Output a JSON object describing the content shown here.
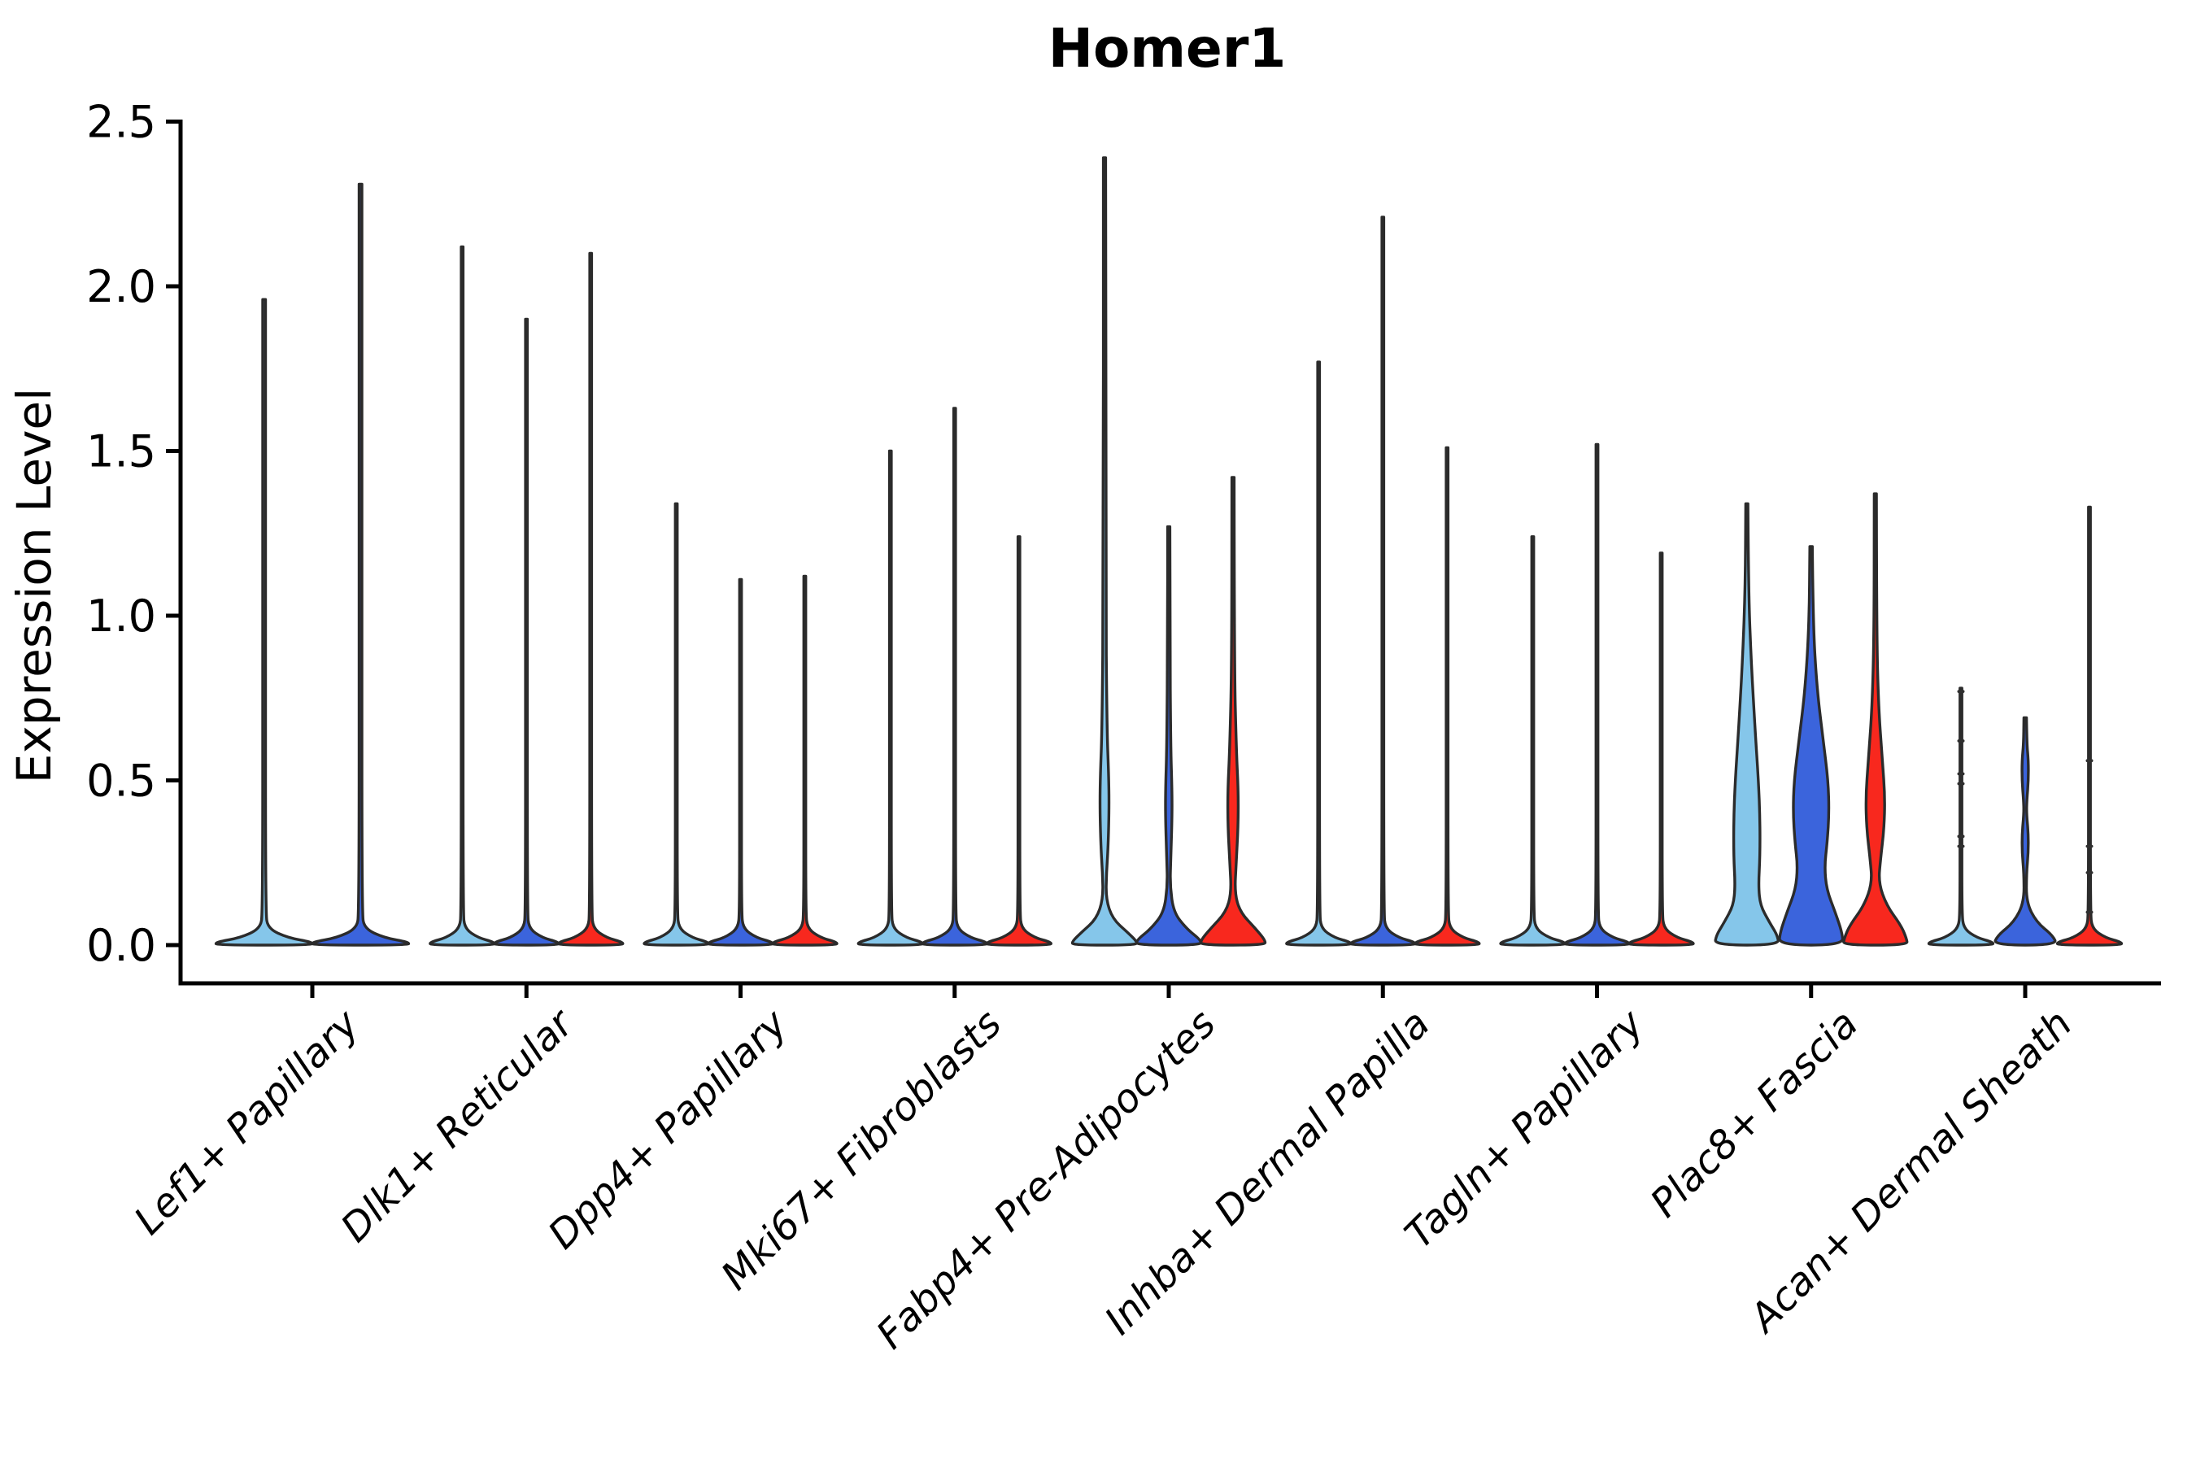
{
  "title": "Homer1",
  "y_axis": {
    "label": "Expression Level",
    "ticks": [
      "0.0",
      "0.5",
      "1.0",
      "1.5",
      "2.0",
      "2.5"
    ]
  },
  "colors": {
    "split_fills": [
      "#85C6EA",
      "#3B64DC",
      "#F8281E"
    ],
    "violin_outline": "#2B2B2B",
    "axis": "#000000",
    "point_marks": "#2F2F2F",
    "background": "#FFFFFF"
  },
  "chart_data": {
    "type": "violin",
    "title": "Homer1",
    "xlabel": "",
    "ylabel": "Expression Level",
    "ylim": [
      -0.12,
      2.52
    ],
    "yticks": [
      0.0,
      0.5,
      1.0,
      1.5,
      2.0,
      2.5
    ],
    "grid": false,
    "legend": "none",
    "categories": [
      "Lef1+ Papillary",
      "Dlk1+ Reticular",
      "Dpp4+ Papillary",
      "Mki67+ Fibroblasts",
      "Fabp4+ Pre-Adipocytes",
      "Inhba+ Dermal Papilla",
      "Tagln+ Papillary",
      "Plac8+ Fascia",
      "Acan+ Dermal Sheath"
    ],
    "groups": [
      {
        "category": "Lef1+ Papillary",
        "violins": [
          {
            "split": 1,
            "max": 1.96,
            "shape": "spike"
          },
          {
            "split": 2,
            "max": 2.31,
            "shape": "spike"
          }
        ]
      },
      {
        "category": "Dlk1+ Reticular",
        "violins": [
          {
            "split": 1,
            "max": 2.12,
            "shape": "spike"
          },
          {
            "split": 2,
            "max": 1.9,
            "shape": "spike"
          },
          {
            "split": 3,
            "max": 2.1,
            "shape": "spike"
          }
        ]
      },
      {
        "category": "Dpp4+ Papillary",
        "violins": [
          {
            "split": 1,
            "max": 1.34,
            "shape": "spike"
          },
          {
            "split": 2,
            "max": 1.11,
            "shape": "spike"
          },
          {
            "split": 3,
            "max": 1.12,
            "shape": "spike"
          }
        ]
      },
      {
        "category": "Mki67+ Fibroblasts",
        "violins": [
          {
            "split": 1,
            "max": 1.5,
            "shape": "spike"
          },
          {
            "split": 2,
            "max": 1.63,
            "shape": "spike"
          },
          {
            "split": 3,
            "max": 1.24,
            "shape": "spike"
          }
        ]
      },
      {
        "category": "Fabp4+ Pre-Adipocytes",
        "violins": [
          {
            "split": 1,
            "max": 2.39,
            "shape": "body",
            "profile": [
              [
                2.39,
                0.035
              ],
              [
                1.1,
                0.035
              ],
              [
                0.66,
                0.075
              ],
              [
                0.52,
                0.13
              ],
              [
                0.42,
                0.145
              ],
              [
                0.3,
                0.115
              ],
              [
                0.22,
                0.06
              ],
              [
                0.14,
                0.045
              ],
              [
                0.08,
                0.25
              ],
              [
                0.04,
                0.7
              ],
              [
                0.012,
                1.0
              ],
              [
                0,
                1.0
              ]
            ]
          },
          {
            "split": 2,
            "max": 1.27,
            "shape": "body",
            "profile": [
              [
                1.27,
                0.035
              ],
              [
                0.95,
                0.035
              ],
              [
                0.6,
                0.06
              ],
              [
                0.47,
                0.1
              ],
              [
                0.38,
                0.1
              ],
              [
                0.26,
                0.06
              ],
              [
                0.18,
                0.04
              ],
              [
                0.1,
                0.15
              ],
              [
                0.05,
                0.55
              ],
              [
                0.015,
                1.0
              ],
              [
                0,
                1.0
              ]
            ]
          },
          {
            "split": 3,
            "max": 1.42,
            "shape": "body",
            "profile": [
              [
                1.42,
                0.035
              ],
              [
                0.85,
                0.04
              ],
              [
                0.6,
                0.1
              ],
              [
                0.47,
                0.165
              ],
              [
                0.36,
                0.16
              ],
              [
                0.25,
                0.1
              ],
              [
                0.16,
                0.05
              ],
              [
                0.1,
                0.22
              ],
              [
                0.05,
                0.7
              ],
              [
                0.015,
                1.0
              ],
              [
                0,
                1.0
              ]
            ]
          }
        ]
      },
      {
        "category": "Inhba+ Dermal Papilla",
        "violins": [
          {
            "split": 1,
            "max": 1.77,
            "shape": "spike"
          },
          {
            "split": 2,
            "max": 2.21,
            "shape": "spike"
          },
          {
            "split": 3,
            "max": 1.51,
            "shape": "spike"
          }
        ]
      },
      {
        "category": "Tagln+ Papillary",
        "violins": [
          {
            "split": 1,
            "max": 1.24,
            "shape": "spike"
          },
          {
            "split": 2,
            "max": 1.52,
            "shape": "spike"
          },
          {
            "split": 3,
            "max": 1.19,
            "shape": "spike"
          }
        ]
      },
      {
        "category": "Plac8+ Fascia",
        "violins": [
          {
            "split": 1,
            "max": 1.34,
            "shape": "body",
            "profile": [
              [
                1.34,
                0.035
              ],
              [
                1.08,
                0.05
              ],
              [
                0.85,
                0.14
              ],
              [
                0.65,
                0.26
              ],
              [
                0.5,
                0.36
              ],
              [
                0.38,
                0.41
              ],
              [
                0.27,
                0.41
              ],
              [
                0.18,
                0.36
              ],
              [
                0.12,
                0.42
              ],
              [
                0.07,
                0.7
              ],
              [
                0.03,
                0.95
              ],
              [
                0,
                1.0
              ]
            ]
          },
          {
            "split": 2,
            "max": 1.21,
            "shape": "body",
            "profile": [
              [
                1.21,
                0.04
              ],
              [
                0.98,
                0.06
              ],
              [
                0.78,
                0.18
              ],
              [
                0.62,
                0.38
              ],
              [
                0.5,
                0.53
              ],
              [
                0.4,
                0.56
              ],
              [
                0.31,
                0.5
              ],
              [
                0.24,
                0.42
              ],
              [
                0.17,
                0.48
              ],
              [
                0.1,
                0.75
              ],
              [
                0.04,
                0.96
              ],
              [
                0,
                1.0
              ]
            ]
          },
          {
            "split": 3,
            "max": 1.37,
            "shape": "body",
            "profile": [
              [
                1.37,
                0.035
              ],
              [
                0.95,
                0.04
              ],
              [
                0.72,
                0.1
              ],
              [
                0.56,
                0.22
              ],
              [
                0.45,
                0.3
              ],
              [
                0.35,
                0.27
              ],
              [
                0.26,
                0.16
              ],
              [
                0.19,
                0.1
              ],
              [
                0.12,
                0.35
              ],
              [
                0.06,
                0.8
              ],
              [
                0.02,
                0.97
              ],
              [
                0,
                1.0
              ]
            ]
          }
        ]
      },
      {
        "category": "Acan+ Dermal Sheath",
        "violins": [
          {
            "split": 1,
            "max": 0.78,
            "shape": "spike",
            "point_marks": [
              0.77,
              0.62,
              0.52,
              0.49,
              0.33,
              0.3
            ]
          },
          {
            "split": 2,
            "max": 0.69,
            "shape": "body",
            "profile": [
              [
                0.69,
                0.04
              ],
              [
                0.61,
                0.05
              ],
              [
                0.56,
                0.1
              ],
              [
                0.5,
                0.1
              ],
              [
                0.44,
                0.05
              ],
              [
                0.4,
                0.04
              ],
              [
                0.34,
                0.095
              ],
              [
                0.28,
                0.095
              ],
              [
                0.22,
                0.04
              ],
              [
                0.13,
                0.035
              ],
              [
                0.07,
                0.35
              ],
              [
                0.03,
                0.85
              ],
              [
                0,
                1.0
              ]
            ]
          },
          {
            "split": 3,
            "max": 1.33,
            "shape": "spike",
            "point_marks": [
              0.56,
              0.3,
              0.22,
              0.1
            ]
          }
        ]
      }
    ]
  }
}
